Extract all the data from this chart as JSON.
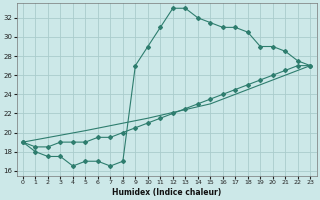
{
  "line1_x": [
    0,
    1,
    2,
    3,
    4,
    5,
    6,
    7,
    8,
    9,
    10,
    11,
    12,
    13,
    14,
    15,
    16,
    17,
    18,
    19,
    20,
    21,
    22,
    23
  ],
  "line1_y": [
    19,
    18,
    17.5,
    17.5,
    16.5,
    17,
    17,
    16.5,
    17,
    27,
    29,
    31,
    33,
    33,
    32,
    31.5,
    31,
    31,
    30.5,
    29,
    29,
    28.5,
    27.5,
    27
  ],
  "line2_x": [
    0,
    1,
    2,
    3,
    4,
    5,
    6,
    7,
    8,
    9,
    10,
    11,
    12,
    13,
    14,
    15,
    16,
    17,
    18,
    19,
    20,
    21,
    22,
    23
  ],
  "line2_y": [
    19,
    18.5,
    18.5,
    19,
    19,
    19,
    19.5,
    19.5,
    20,
    20.5,
    21,
    21.5,
    22,
    22.5,
    23,
    23.5,
    24,
    24.5,
    25,
    25.5,
    26,
    26.5,
    27,
    27
  ],
  "line3_x": [
    0,
    5,
    10,
    15,
    20,
    23
  ],
  "line3_y": [
    19,
    20.2,
    21.5,
    23,
    25.5,
    27
  ],
  "color": "#2e7d6e",
  "bg_color": "#cce8e8",
  "grid_color": "#aacccc",
  "xlabel": "Humidex (Indice chaleur)",
  "xlim": [
    -0.5,
    23.5
  ],
  "ylim": [
    15.5,
    33.5
  ],
  "xticks": [
    0,
    1,
    2,
    3,
    4,
    5,
    6,
    7,
    8,
    9,
    10,
    11,
    12,
    13,
    14,
    15,
    16,
    17,
    18,
    19,
    20,
    21,
    22,
    23
  ],
  "yticks": [
    16,
    18,
    20,
    22,
    24,
    26,
    28,
    30,
    32
  ]
}
